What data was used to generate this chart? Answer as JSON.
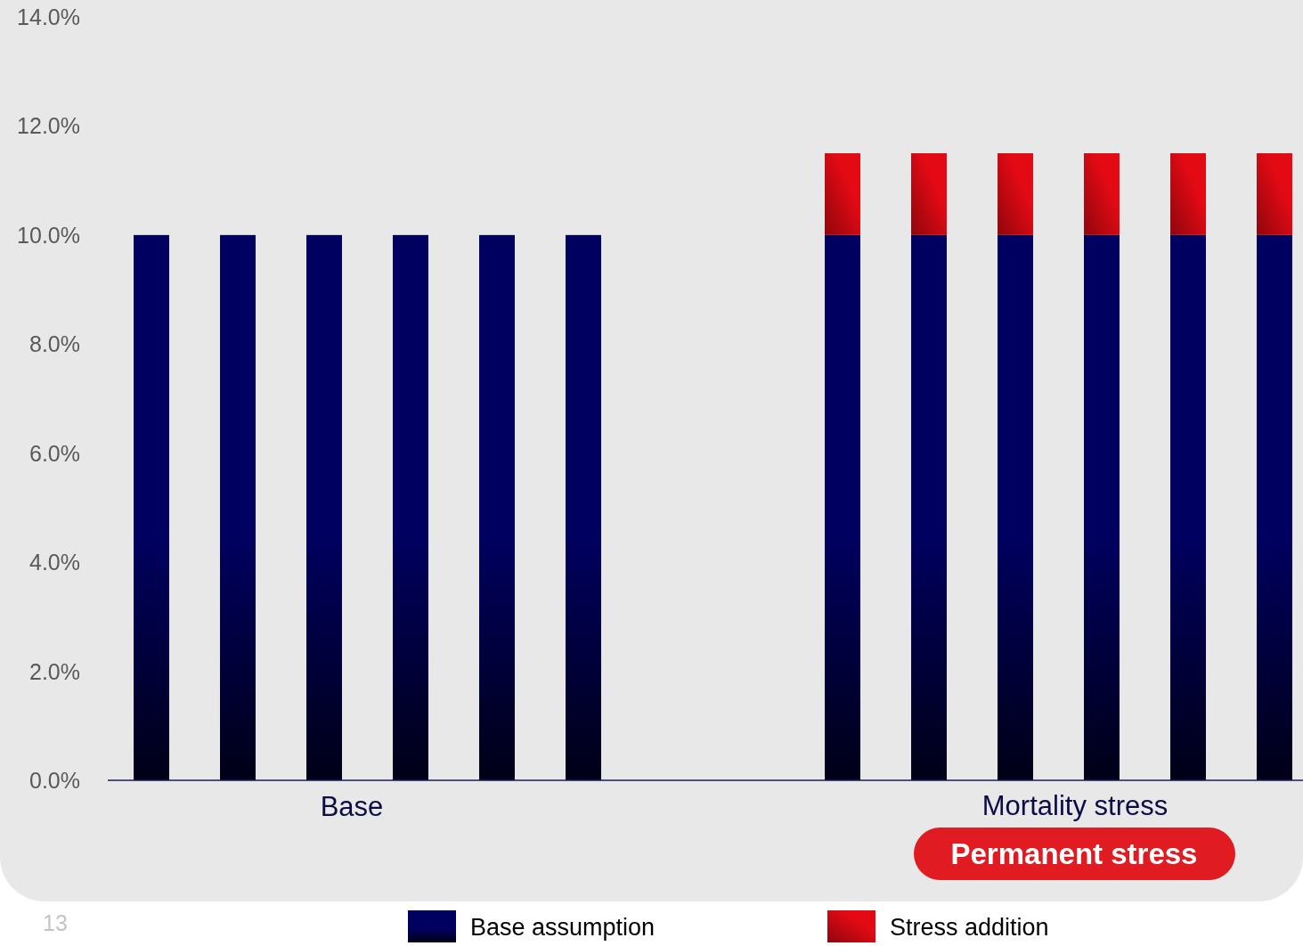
{
  "chart_data": {
    "type": "bar",
    "stacked": true,
    "categories": [
      null,
      null,
      null,
      null,
      null,
      null,
      null,
      null,
      null,
      null,
      null,
      null,
      null,
      null
    ],
    "series": [
      {
        "name": "Base assumption",
        "color": "#000060",
        "values": [
          10,
          10,
          10,
          10,
          10,
          10,
          null,
          null,
          10,
          10,
          10,
          10,
          10,
          10
        ]
      },
      {
        "name": "Stress addition",
        "color": "#e30a14",
        "values": [
          null,
          null,
          null,
          null,
          null,
          null,
          null,
          null,
          1.5,
          1.5,
          1.5,
          1.5,
          1.5,
          1.5
        ]
      }
    ],
    "ylim": [
      0,
      14
    ],
    "yticks": [
      {
        "value": 0,
        "label": "0.0%"
      },
      {
        "value": 2,
        "label": "2.0%"
      },
      {
        "value": 4,
        "label": "4.0%"
      },
      {
        "value": 6,
        "label": "6.0%"
      },
      {
        "value": 8,
        "label": "8.0%"
      },
      {
        "value": 10,
        "label": "10.0%"
      },
      {
        "value": 12,
        "label": "12.0%"
      },
      {
        "value": 14,
        "label": "14.0%"
      }
    ],
    "tick_labels": "y",
    "legend": "bottom",
    "annotations": [
      "Base",
      "Mortality stress",
      "Permanent stress",
      "13"
    ]
  }
}
